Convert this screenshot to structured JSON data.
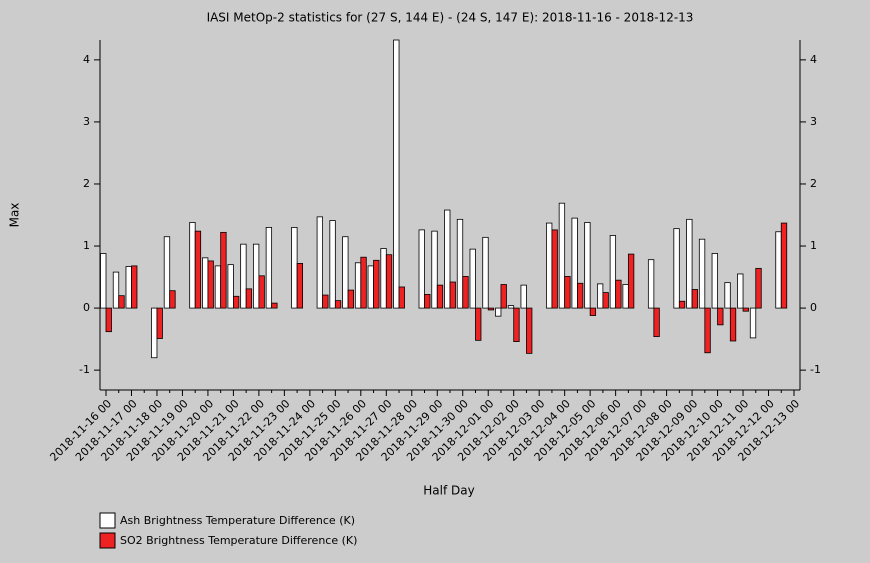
{
  "chart_data": {
    "type": "bar",
    "title": "IASI MetOp-2 statistics for (27 S, 144 E) - (24 S, 147 E): 2018-11-16 - 2018-12-13",
    "x_label": "Half Day",
    "y_label": "Max",
    "categories": [
      "2018-11-16 00",
      null,
      "2018-11-17 00",
      null,
      "2018-11-18 00",
      null,
      "2018-11-19 00",
      null,
      "2018-11-20 00",
      null,
      "2018-11-21 00",
      null,
      "2018-11-22 00",
      null,
      "2018-11-23 00",
      null,
      "2018-11-24 00",
      null,
      "2018-11-25 00",
      null,
      "2018-11-26 00",
      null,
      "2018-11-27 00",
      null,
      "2018-11-28 00",
      null,
      "2018-11-29 00",
      null,
      "2018-11-30 00",
      null,
      "2018-12-01 00",
      null,
      "2018-12-02 00",
      null,
      "2018-12-03 00",
      null,
      "2018-12-04 00",
      null,
      "2018-12-05 00",
      null,
      "2018-12-06 00",
      null,
      "2018-12-07 00",
      null,
      "2018-12-08 00",
      null,
      "2018-12-09 00",
      null,
      "2018-12-10 00",
      null,
      "2018-12-11 00",
      null,
      "2018-12-12 00",
      null,
      "2018-12-13 00"
    ],
    "series": [
      {
        "name": "Ash Brightness Temperature Difference (K)",
        "color": "#ffffff",
        "values": [
          0.88,
          0.58,
          0.67,
          null,
          -0.8,
          1.15,
          null,
          1.38,
          0.81,
          0.68,
          0.7,
          1.03,
          1.03,
          1.3,
          null,
          1.3,
          null,
          1.47,
          1.41,
          1.15,
          0.73,
          0.68,
          0.96,
          4.32,
          null,
          1.26,
          1.24,
          1.58,
          1.43,
          0.95,
          1.14,
          -0.13,
          0.04,
          0.37,
          null,
          1.37,
          1.69,
          1.45,
          1.38,
          0.39,
          1.17,
          0.38,
          null,
          0.78,
          null,
          1.28,
          1.43,
          1.11,
          0.88,
          0.41,
          0.55,
          -0.48,
          null,
          1.23,
          null
        ]
      },
      {
        "name": "SO2 Brightness Temperature Difference (K)",
        "color": "#ee2222",
        "values": [
          -0.38,
          0.2,
          0.68,
          null,
          -0.49,
          0.28,
          null,
          1.24,
          0.76,
          1.22,
          0.19,
          0.31,
          0.52,
          0.08,
          null,
          0.72,
          null,
          0.21,
          0.12,
          0.29,
          0.82,
          0.77,
          0.86,
          0.34,
          null,
          0.22,
          0.37,
          0.42,
          0.51,
          -0.52,
          -0.03,
          0.38,
          -0.54,
          -0.73,
          null,
          1.26,
          0.51,
          0.4,
          -0.12,
          0.25,
          0.45,
          0.87,
          null,
          -0.46,
          null,
          0.11,
          0.3,
          -0.72,
          -0.27,
          -0.53,
          -0.05,
          0.64,
          null,
          1.37,
          null
        ]
      }
    ],
    "ylim": [
      -1.32,
      4.32
    ],
    "yticks": [
      -1,
      0,
      1,
      2,
      3,
      4
    ],
    "legend": "bottom-left"
  }
}
